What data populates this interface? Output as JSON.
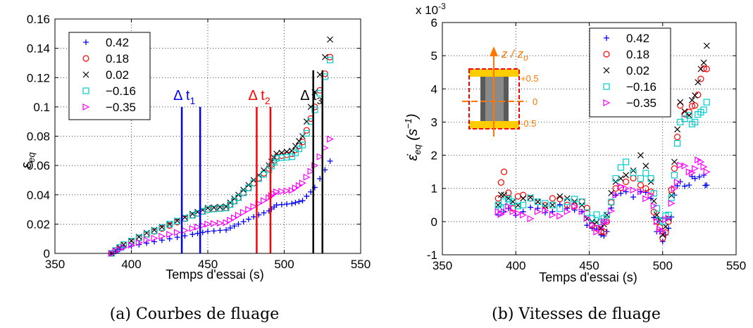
{
  "chart_data": [
    {
      "type": "scatter",
      "caption": "(a) Courbes de fluage",
      "xlabel": "Temps d'essai (s)",
      "ylabel": "ε",
      "ylabel_sub": "eq",
      "xlim": [
        350,
        550
      ],
      "ylim": [
        0,
        0.16
      ],
      "xticks": [
        "350",
        "400",
        "450",
        "500",
        "550"
      ],
      "yticks": [
        "0",
        "0.02",
        "0.04",
        "0.06",
        "0.08",
        "0.1",
        "0.12",
        "0.14",
        "0.16"
      ],
      "grid": true,
      "legend_position": "top-left",
      "series": [
        {
          "name": "0.42",
          "marker": "+",
          "color": "#0000ff",
          "points": [
            [
              387,
              0
            ],
            [
              395,
              0.004
            ],
            [
              410,
              0.007
            ],
            [
              425,
              0.01
            ],
            [
              440,
              0.013
            ],
            [
              450,
              0.015
            ],
            [
              462,
              0.016
            ],
            [
              470,
              0.02
            ],
            [
              480,
              0.025
            ],
            [
              490,
              0.029
            ],
            [
              495,
              0.033
            ],
            [
              505,
              0.034
            ],
            [
              512,
              0.036
            ],
            [
              520,
              0.045
            ],
            [
              530,
              0.063
            ]
          ]
        },
        {
          "name": "0.18",
          "marker": "o",
          "color": "#ff0000",
          "points": [
            [
              387,
              0
            ],
            [
              395,
              0.006
            ],
            [
              410,
              0.013
            ],
            [
              425,
              0.019
            ],
            [
              440,
              0.026
            ],
            [
              450,
              0.03
            ],
            [
              462,
              0.031
            ],
            [
              470,
              0.038
            ],
            [
              480,
              0.048
            ],
            [
              490,
              0.058
            ],
            [
              495,
              0.066
            ],
            [
              505,
              0.068
            ],
            [
              512,
              0.076
            ],
            [
              520,
              0.1
            ],
            [
              530,
              0.134
            ]
          ]
        },
        {
          "name": "0.02",
          "marker": "×",
          "color": "#000000",
          "points": [
            [
              387,
              0
            ],
            [
              395,
              0.006
            ],
            [
              410,
              0.014
            ],
            [
              425,
              0.02
            ],
            [
              440,
              0.027
            ],
            [
              450,
              0.031
            ],
            [
              462,
              0.032
            ],
            [
              470,
              0.04
            ],
            [
              480,
              0.05
            ],
            [
              490,
              0.06
            ],
            [
              495,
              0.068
            ],
            [
              505,
              0.07
            ],
            [
              512,
              0.08
            ],
            [
              520,
              0.11
            ],
            [
              530,
              0.146
            ]
          ]
        },
        {
          "name": "−0.16",
          "marker": "□",
          "color": "#00cccc",
          "points": [
            [
              387,
              0
            ],
            [
              395,
              0.006
            ],
            [
              410,
              0.013
            ],
            [
              425,
              0.02
            ],
            [
              440,
              0.026
            ],
            [
              450,
              0.03
            ],
            [
              462,
              0.031
            ],
            [
              470,
              0.038
            ],
            [
              480,
              0.048
            ],
            [
              490,
              0.057
            ],
            [
              495,
              0.065
            ],
            [
              505,
              0.066
            ],
            [
              512,
              0.074
            ],
            [
              520,
              0.098
            ],
            [
              530,
              0.132
            ]
          ]
        },
        {
          "name": "−0.35",
          "marker": "▷",
          "color": "#ff00ff",
          "points": [
            [
              387,
              0
            ],
            [
              395,
              0.004
            ],
            [
              410,
              0.009
            ],
            [
              425,
              0.013
            ],
            [
              440,
              0.017
            ],
            [
              450,
              0.02
            ],
            [
              462,
              0.021
            ],
            [
              470,
              0.026
            ],
            [
              480,
              0.032
            ],
            [
              490,
              0.038
            ],
            [
              495,
              0.042
            ],
            [
              505,
              0.043
            ],
            [
              512,
              0.048
            ],
            [
              520,
              0.06
            ],
            [
              530,
              0.078
            ]
          ]
        }
      ],
      "annotations": [
        {
          "label": "Δ t",
          "sub": "1",
          "color": "#0000ff",
          "lines_x": [
            433,
            445
          ],
          "line_top": 0.1,
          "label_x": 433,
          "label_y": 0.1
        },
        {
          "label": "Δ t",
          "sub": "2",
          "color": "#ff0000",
          "lines_x": [
            482,
            491
          ],
          "line_top": 0.1,
          "label_x": 482,
          "label_y": 0.1
        },
        {
          "label": "Δ t",
          "sub": "3",
          "color": "#000000",
          "lines_x": [
            519,
            525
          ],
          "line_top": 0.125,
          "label_x": 516,
          "label_y": 0.1
        }
      ]
    },
    {
      "type": "scatter",
      "caption": "(b) Vitesses de fluage",
      "xlabel": "Temps d'essai (s)",
      "ylabel": "ε̇",
      "ylabel_sub": "eq",
      "ylabel_unit": "(s",
      "ylabel_unit_sup": "−1",
      "ylabel_unit_close": ")",
      "y_multiplier": "x 10",
      "y_multiplier_exp": "-3",
      "xlim": [
        350,
        550
      ],
      "ylim": [
        -1,
        6
      ],
      "xticks": [
        "350",
        "400",
        "450",
        "500",
        "550"
      ],
      "yticks": [
        "-1",
        "0",
        "1",
        "2",
        "3",
        "4",
        "5",
        "6"
      ],
      "grid": true,
      "legend_position": "top-right",
      "series": [
        {
          "name": "0.42",
          "marker": "+",
          "color": "#0000ff",
          "points": [
            [
              388,
              0.2
            ],
            [
              395,
              0.4
            ],
            [
              405,
              0.3
            ],
            [
              415,
              0.4
            ],
            [
              425,
              0.3
            ],
            [
              435,
              0.4
            ],
            [
              445,
              0.3
            ],
            [
              452,
              -0.2
            ],
            [
              458,
              -0.4
            ],
            [
              462,
              -0.3
            ],
            [
              468,
              0.8
            ],
            [
              475,
              0.9
            ],
            [
              485,
              0.9
            ],
            [
              492,
              0.7
            ],
            [
              496,
              -0.3
            ],
            [
              500,
              -0.6
            ],
            [
              504,
              -0.2
            ],
            [
              508,
              0.8
            ],
            [
              512,
              1.2
            ],
            [
              518,
              1.1
            ],
            [
              522,
              1.3
            ],
            [
              528,
              1.4
            ],
            [
              530,
              1.1
            ]
          ]
        },
        {
          "name": "0.18",
          "marker": "o",
          "color": "#ff0000",
          "points": [
            [
              388,
              0.7
            ],
            [
              392,
              1.5
            ],
            [
              398,
              0.4
            ],
            [
              405,
              0.8
            ],
            [
              415,
              0.6
            ],
            [
              425,
              0.7
            ],
            [
              435,
              0.5
            ],
            [
              445,
              0.6
            ],
            [
              452,
              -0.1
            ],
            [
              458,
              -0.3
            ],
            [
              462,
              0.0
            ],
            [
              468,
              1.0
            ],
            [
              475,
              1.2
            ],
            [
              485,
              1.1
            ],
            [
              492,
              0.9
            ],
            [
              496,
              0.0
            ],
            [
              500,
              -0.5
            ],
            [
              504,
              0.0
            ],
            [
              508,
              1.6
            ],
            [
              512,
              3.5
            ],
            [
              518,
              3.3
            ],
            [
              522,
              3.5
            ],
            [
              526,
              4.3
            ],
            [
              530,
              4.6
            ]
          ]
        },
        {
          "name": "0.02",
          "marker": "×",
          "color": "#000000",
          "points": [
            [
              388,
              0.5
            ],
            [
              392,
              0.8
            ],
            [
              398,
              0.6
            ],
            [
              405,
              0.7
            ],
            [
              415,
              0.6
            ],
            [
              425,
              0.5
            ],
            [
              435,
              0.7
            ],
            [
              445,
              0.5
            ],
            [
              452,
              0.0
            ],
            [
              458,
              -0.2
            ],
            [
              462,
              0.2
            ],
            [
              468,
              1.2
            ],
            [
              475,
              1.4
            ],
            [
              485,
              2.0
            ],
            [
              492,
              1.2
            ],
            [
              496,
              0.2
            ],
            [
              500,
              -0.4
            ],
            [
              504,
              0.1
            ],
            [
              508,
              1.8
            ],
            [
              512,
              3.6
            ],
            [
              518,
              3.2
            ],
            [
              522,
              3.8
            ],
            [
              526,
              4.6
            ],
            [
              530,
              5.3
            ]
          ]
        },
        {
          "name": "−0.16",
          "marker": "□",
          "color": "#00cccc",
          "points": [
            [
              388,
              0.5
            ],
            [
              392,
              0.6
            ],
            [
              398,
              0.6
            ],
            [
              405,
              0.5
            ],
            [
              415,
              0.6
            ],
            [
              425,
              0.5
            ],
            [
              435,
              0.6
            ],
            [
              445,
              0.6
            ],
            [
              452,
              0.1
            ],
            [
              458,
              0.0
            ],
            [
              462,
              0.2
            ],
            [
              468,
              1.3
            ],
            [
              475,
              1.8
            ],
            [
              485,
              1.3
            ],
            [
              492,
              1.3
            ],
            [
              496,
              0.4
            ],
            [
              500,
              0.0
            ],
            [
              504,
              0.2
            ],
            [
              508,
              1.4
            ],
            [
              512,
              3.0
            ],
            [
              518,
              3.2
            ],
            [
              522,
              3.0
            ],
            [
              526,
              3.3
            ],
            [
              530,
              3.6
            ]
          ]
        },
        {
          "name": "−0.35",
          "marker": "▷",
          "color": "#ff00ff",
          "points": [
            [
              388,
              0.3
            ],
            [
              392,
              0.3
            ],
            [
              398,
              0.3
            ],
            [
              405,
              0.2
            ],
            [
              415,
              0.3
            ],
            [
              425,
              0.2
            ],
            [
              435,
              0.3
            ],
            [
              445,
              0.3
            ],
            [
              452,
              -0.1
            ],
            [
              458,
              -0.2
            ],
            [
              462,
              0.0
            ],
            [
              468,
              0.8
            ],
            [
              475,
              1.0
            ],
            [
              485,
              0.9
            ],
            [
              492,
              0.8
            ],
            [
              496,
              0.0
            ],
            [
              500,
              -0.3
            ],
            [
              504,
              0.1
            ],
            [
              508,
              1.0
            ],
            [
              512,
              1.7
            ],
            [
              518,
              1.5
            ],
            [
              522,
              1.6
            ],
            [
              526,
              1.8
            ],
            [
              530,
              1.5
            ]
          ]
        }
      ],
      "inset": {
        "axis_label": "z / z",
        "axis_label_sub": "o",
        "levels": [
          "+0.5",
          "0",
          "-0.5"
        ],
        "colors": {
          "frame": "#ff0000",
          "plate": "#ffcc00",
          "axis": "#ff7700",
          "sample": "#555555"
        }
      }
    }
  ]
}
